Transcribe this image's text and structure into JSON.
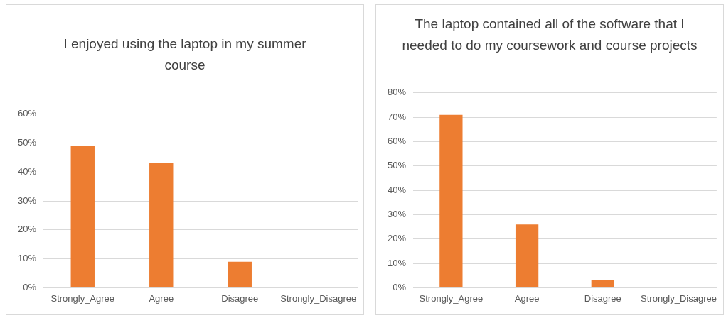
{
  "chart_data": [
    {
      "type": "bar",
      "title": "I enjoyed using the laptop in my summer course",
      "categories": [
        "Strongly_Agree",
        "Agree",
        "Disagree",
        "Strongly_Disagree"
      ],
      "values": [
        49,
        43,
        9,
        0
      ],
      "color": "#ed7d31",
      "ylim": [
        0,
        60
      ],
      "yticks": [
        {
          "value": 0,
          "label": "0%"
        },
        {
          "value": 10,
          "label": "10%"
        },
        {
          "value": 20,
          "label": "20%"
        },
        {
          "value": 30,
          "label": "30%"
        },
        {
          "value": 40,
          "label": "40%"
        },
        {
          "value": 50,
          "label": "50%"
        },
        {
          "value": 60,
          "label": "60%"
        }
      ],
      "grid": "y"
    },
    {
      "type": "bar",
      "title": "The laptop contained all of the software that I needed to do my coursework and course projects",
      "categories": [
        "Strongly_Agree",
        "Agree",
        "Disagree",
        "Strongly_Disagree"
      ],
      "values": [
        71,
        26,
        3,
        0
      ],
      "color": "#ed7d31",
      "ylim": [
        0,
        80
      ],
      "yticks": [
        {
          "value": 0,
          "label": "0%"
        },
        {
          "value": 10,
          "label": "10%"
        },
        {
          "value": 20,
          "label": "20%"
        },
        {
          "value": 30,
          "label": "30%"
        },
        {
          "value": 40,
          "label": "40%"
        },
        {
          "value": 50,
          "label": "50%"
        },
        {
          "value": 60,
          "label": "60%"
        },
        {
          "value": 70,
          "label": "70%"
        },
        {
          "value": 80,
          "label": "80%"
        }
      ],
      "grid": "y"
    }
  ]
}
